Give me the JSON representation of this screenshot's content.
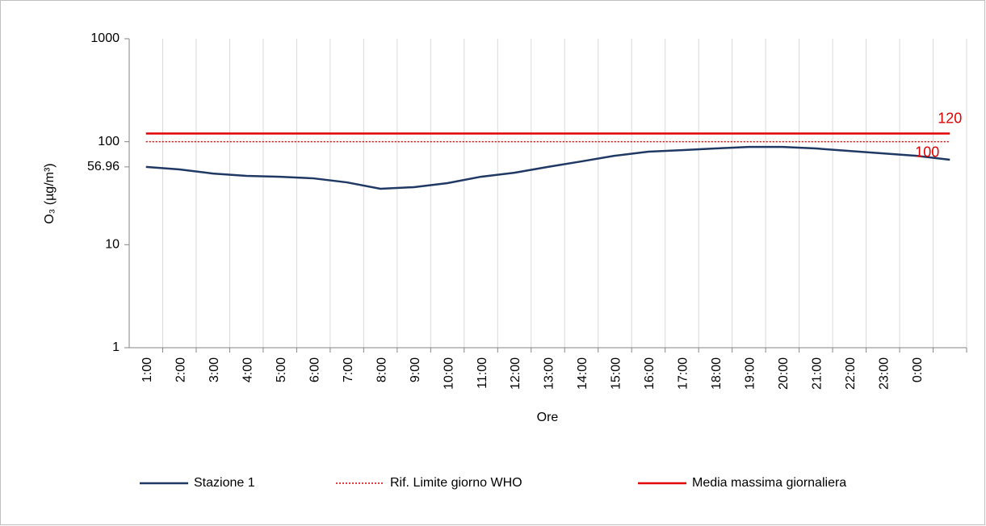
{
  "chart_data": {
    "type": "line",
    "ylabel": "O₃ (µg/m³)",
    "xlabel": "Ore",
    "categories": [
      "1:00",
      "2:00",
      "3:00",
      "4:00",
      "5:00",
      "6:00",
      "7:00",
      "8:00",
      "9:00",
      "10:00",
      "11:00",
      "12:00",
      "13:00",
      "14:00",
      "15:00",
      "16:00",
      "17:00",
      "18:00",
      "19:00",
      "20:00",
      "21:00",
      "22:00",
      "23:00",
      "0:00",
      null
    ],
    "yscale": "log",
    "ylim": [
      1,
      1000
    ],
    "yticks": [
      1,
      10,
      56.96,
      100,
      1000
    ],
    "series": [
      {
        "name": "Stazione 1",
        "color": "#1f3864",
        "style": "solid",
        "values": [
          56.96,
          53.8,
          49.1,
          46.6,
          45.7,
          44.1,
          40.3,
          34.9,
          36.2,
          39.6,
          45.7,
          50.0,
          57.0,
          64.4,
          73.1,
          80.0,
          82.8,
          86.0,
          89.1,
          89.0,
          86.0,
          81.4,
          77.1,
          73.0,
          66.8
        ]
      },
      {
        "name": "Rif. Limite giorno WHO",
        "color": "#e00000",
        "style": "dotted",
        "values": [
          100,
          100,
          100,
          100,
          100,
          100,
          100,
          100,
          100,
          100,
          100,
          100,
          100,
          100,
          100,
          100,
          100,
          100,
          100,
          100,
          100,
          100,
          100,
          100,
          100
        ]
      },
      {
        "name": "Media massima giornaliera",
        "color": "#e00000",
        "style": "solid",
        "values": [
          120,
          120,
          120,
          120,
          120,
          120,
          120,
          120,
          120,
          120,
          120,
          120,
          120,
          120,
          120,
          120,
          120,
          120,
          120,
          120,
          120,
          120,
          120,
          120,
          120
        ]
      }
    ],
    "legend": "bottom"
  }
}
